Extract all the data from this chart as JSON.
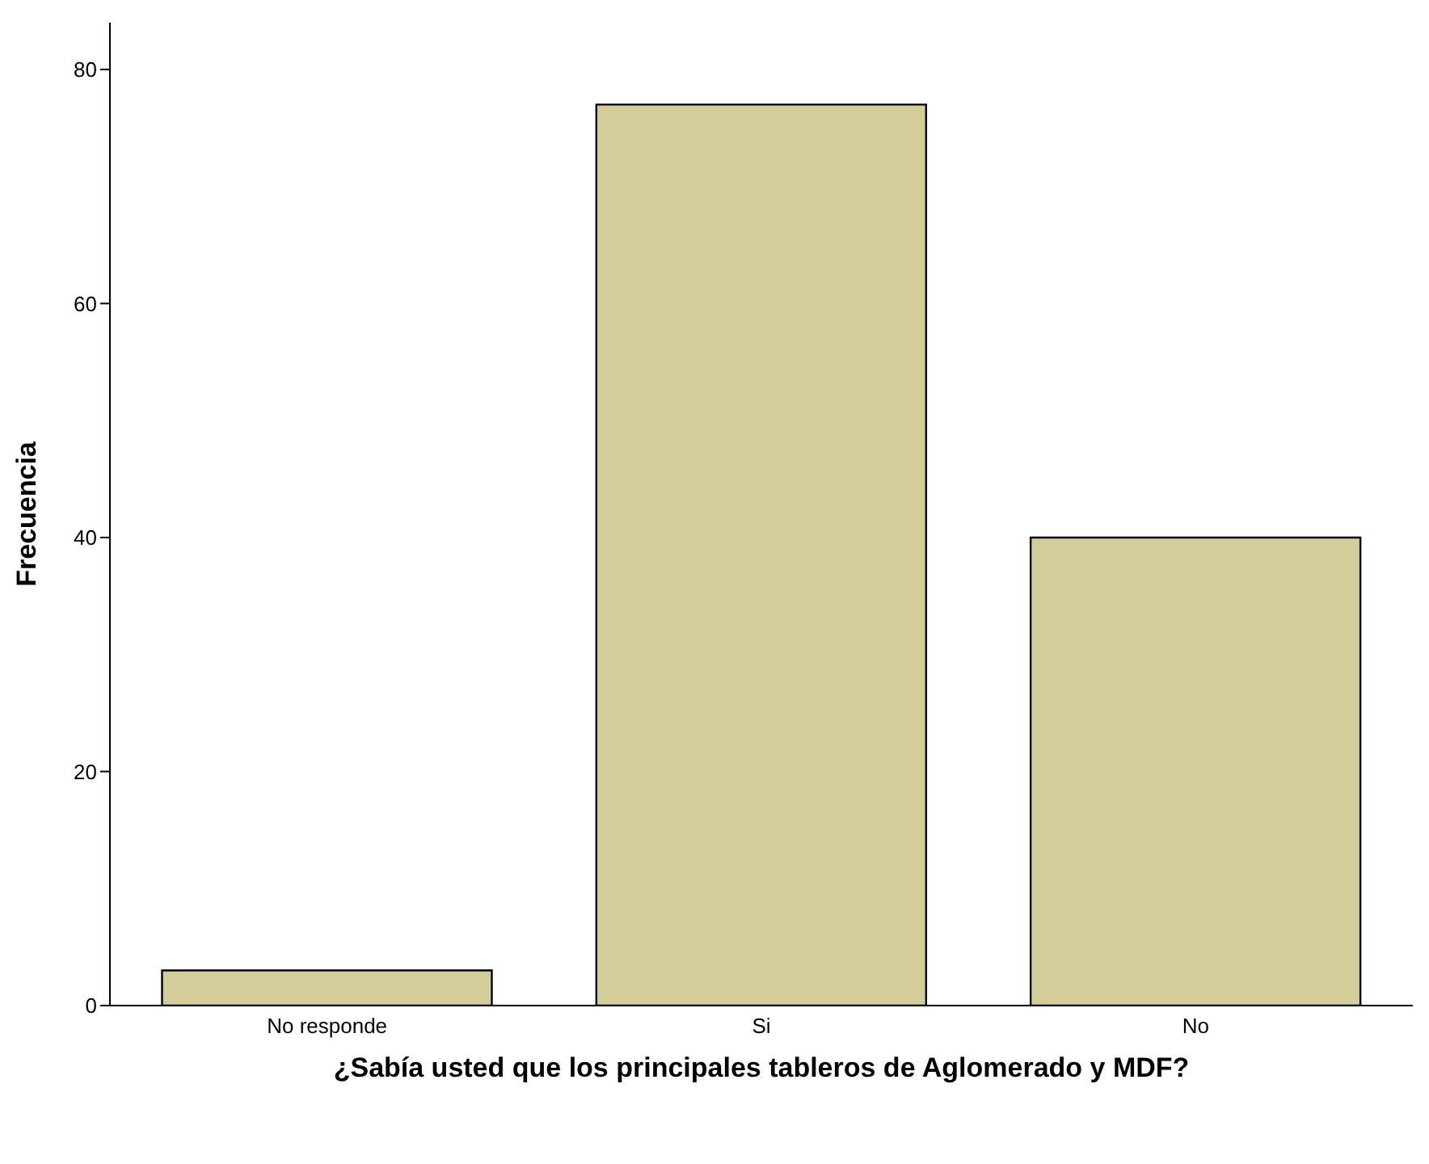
{
  "chart_data": {
    "type": "bar",
    "xlabel": "¿Sabía usted que los principales tableros de Aglomerado y MDF?",
    "ylabel": "Frecuencia",
    "categories": [
      "No responde",
      "Si",
      "No"
    ],
    "values": [
      3,
      77,
      40
    ],
    "color": "#d3ce99",
    "ylim": [
      0,
      84
    ],
    "yticks": [
      0,
      20,
      40,
      60,
      80
    ],
    "grid": false
  }
}
